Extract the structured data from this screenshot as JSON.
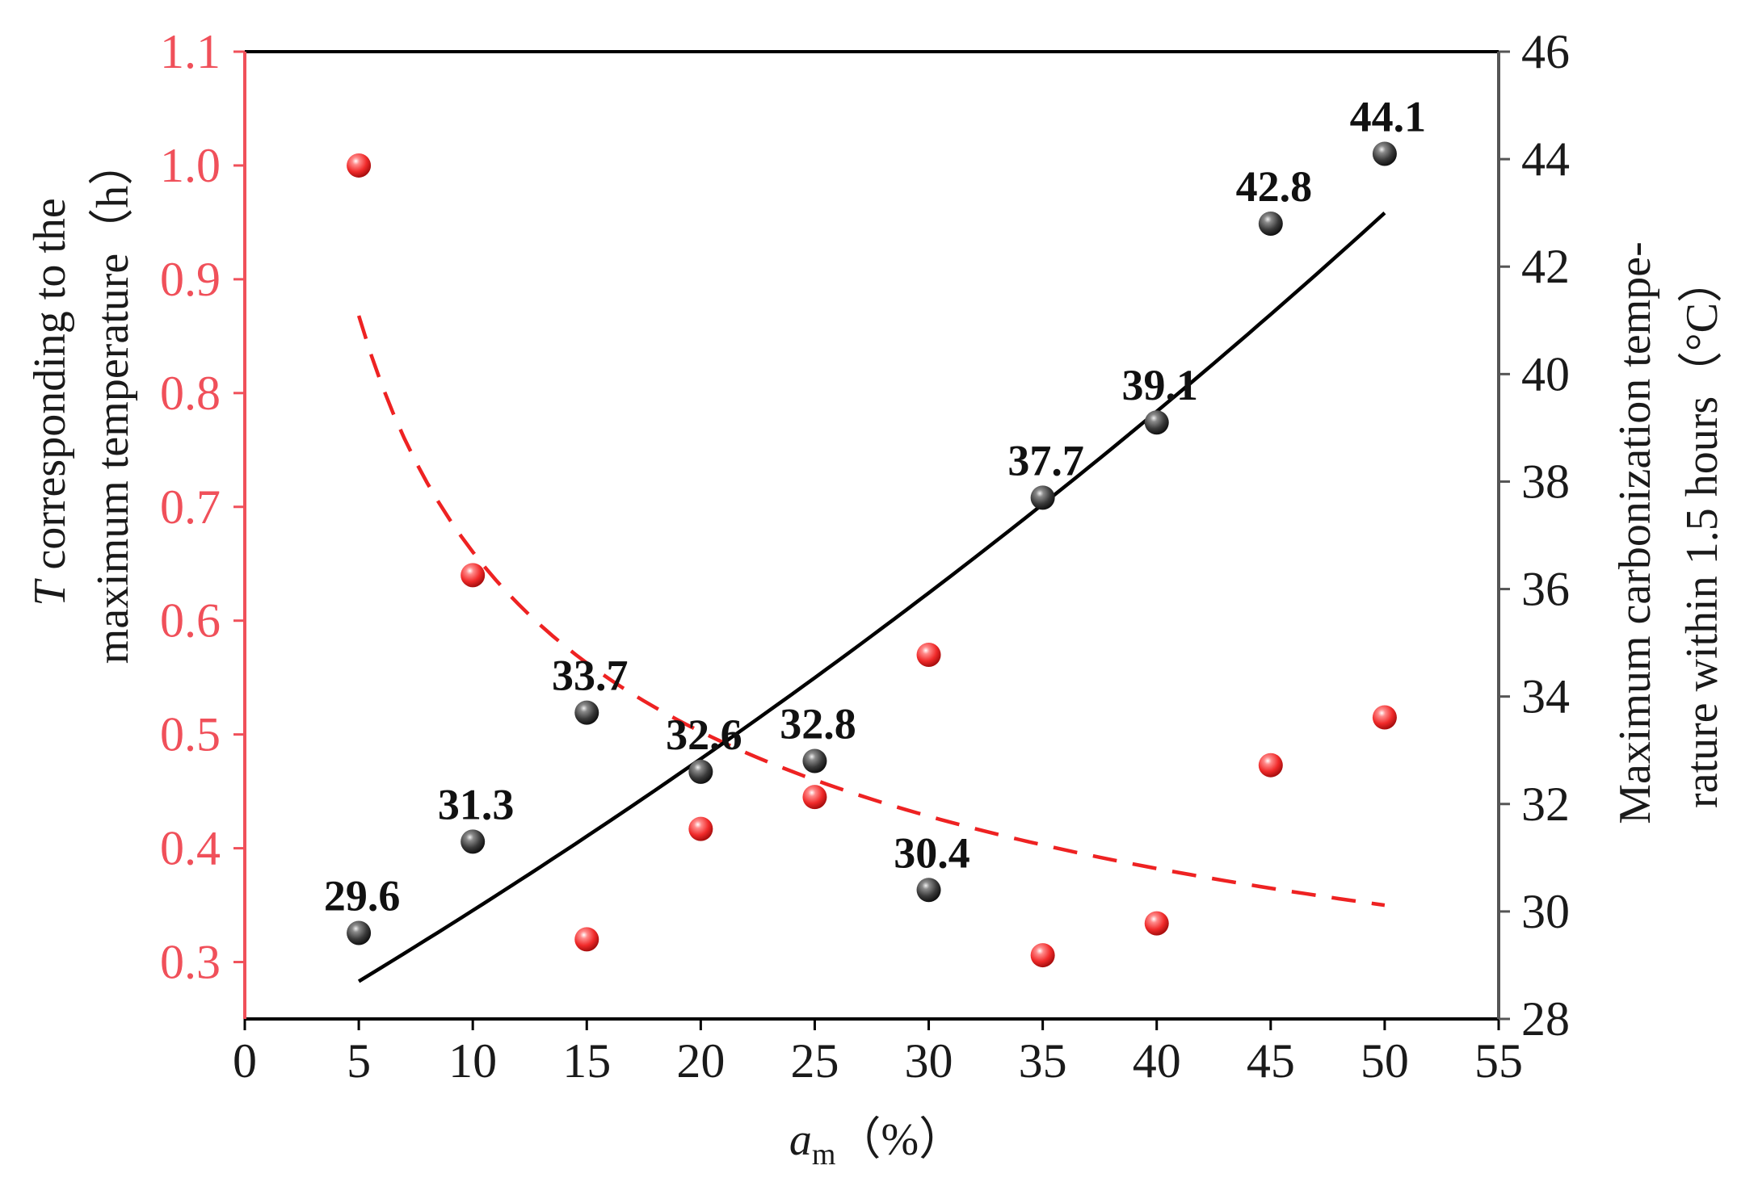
{
  "chart_data": {
    "type": "scatter",
    "x_axis": {
      "label_italic": "a",
      "label_subscript": "m",
      "label_unit": "（%）",
      "range": [
        0,
        55
      ],
      "ticks": [
        0,
        5,
        10,
        15,
        20,
        25,
        30,
        35,
        40,
        45,
        50,
        55
      ]
    },
    "y_left": {
      "label_italic": "T",
      "label_line1": " corresponding to the",
      "label_line2": "maximum temperature（h）",
      "range": [
        0.25,
        1.1
      ],
      "ticks": [
        "0.3",
        "0.4",
        "0.5",
        "0.6",
        "0.7",
        "0.8",
        "0.9",
        "1.0",
        "1.1"
      ],
      "color": "#f0505a"
    },
    "y_right": {
      "label_line1": "Maximum carbonization tempe-",
      "label_line2": "rature within 1.5 hours（°C）",
      "range": [
        28,
        46
      ],
      "ticks": [
        "28",
        "30",
        "32",
        "34",
        "36",
        "38",
        "40",
        "42",
        "44",
        "46"
      ],
      "color": "#555555"
    },
    "series": [
      {
        "axis": "left",
        "color": "#ee2222",
        "x": [
          5,
          10,
          15,
          20,
          25,
          30,
          35,
          40,
          45,
          50
        ],
        "y": [
          1.0,
          0.64,
          0.32,
          0.417,
          0.445,
          0.57,
          0.306,
          0.334,
          0.473,
          0.515
        ],
        "fit": {
          "style": "dashed",
          "x": [
            5,
            50
          ],
          "y_at_x5": 0.868,
          "y_at_x50": 0.35
        }
      },
      {
        "axis": "right",
        "color": "#333333",
        "x": [
          5,
          10,
          15,
          20,
          25,
          30,
          35,
          40,
          45,
          50
        ],
        "y": [
          29.6,
          31.3,
          33.7,
          32.6,
          32.8,
          30.4,
          37.7,
          39.1,
          42.8,
          44.1
        ],
        "labels": [
          "29.6",
          "31.3",
          "33.7",
          "32.6",
          "32.8",
          "30.4",
          "37.7",
          "39.1",
          "42.8",
          "44.1"
        ],
        "fit": {
          "style": "solid",
          "x": [
            5,
            50
          ],
          "y_at_x5": 28.7,
          "y_at_x50": 43.0
        }
      }
    ]
  }
}
